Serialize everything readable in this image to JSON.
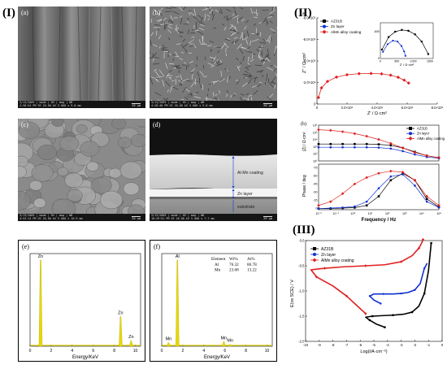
{
  "figure": {
    "roman_I": "(I)",
    "roman_II": "(II)",
    "roman_III": "(III)"
  },
  "sem": {
    "a": {
      "label": "(a)",
      "info": "3/13/2009 | mode | HV | mag | WD",
      "info2": "4:30:54 PM  SE  20.00 kV 5 000 x 9.8 mm",
      "scale": "20 μm"
    },
    "b": {
      "label": "(b)",
      "info": "3/13/2009 | mode | HV | mag | WD",
      "info2": "4:28:48 PM  SE  20.00 kV 5 000 x 9.8 mm",
      "scale": "20 μm"
    },
    "c": {
      "label": "(c)",
      "info": "3/13/2009 | mode | HV | mag | WD",
      "info2": "4:53:14 PM  SE  20.00 kV 5 000 x 10.9 mm",
      "scale": "20 μm"
    },
    "d": {
      "label": "(d)",
      "info": "3/13/2009 | mode | HV | mag | WD",
      "info2": "10:29:51 PM  SE  20.00 kV 5 000 x 7.7 mm",
      "scale": "20 μm",
      "annot_coating": "Al-Mn coating",
      "annot_zn": "Zn layer",
      "annot_sub": "substrate"
    }
  },
  "eds": {
    "e": {
      "label": "(e)",
      "xlabel": "Energy/KeV",
      "peaks": [
        {
          "label": "Zn",
          "energy": 1.0,
          "height": 0.93
        },
        {
          "label": "Zn",
          "energy": 8.6,
          "height": 0.32
        },
        {
          "label": "Zn",
          "energy": 9.6,
          "height": 0.06
        }
      ],
      "xticks": [
        "0",
        "2",
        "4",
        "6",
        "8",
        "10"
      ]
    },
    "f": {
      "label": "(f)",
      "xlabel": "Energy/KeV",
      "peaks": [
        {
          "label": "Mn",
          "energy": 0.65,
          "height": 0.04
        },
        {
          "label": "Al",
          "energy": 1.49,
          "height": 0.93
        },
        {
          "label": "Mn",
          "energy": 5.9,
          "height": 0.05
        },
        {
          "label": "Mn",
          "energy": 6.5,
          "height": 0.02
        }
      ],
      "xticks": [
        "0",
        "2",
        "4",
        "6",
        "8",
        "10"
      ],
      "table": {
        "headers": [
          "Element",
          "Wt%",
          "At%"
        ],
        "rows": [
          [
            "Al",
            "76.32",
            "86.78"
          ],
          [
            "Mn",
            "23.68",
            "13.22"
          ]
        ]
      }
    }
  },
  "chart_data": [
    {
      "type": "line",
      "label": "(a)",
      "xlabel": "Z' / Ω·cm²",
      "ylabel": "Z'' / Ω·cm²",
      "xlim": [
        0,
        800000
      ],
      "ylim": [
        0,
        -800000
      ],
      "xticks": [
        "0",
        "2.0×10⁵",
        "4.0×10⁵",
        "6.0×10⁵",
        "8.0×10⁵"
      ],
      "yticks": [
        "0",
        "-2.0×10⁵",
        "-4.0×10⁵",
        "-6.0×10⁵",
        "-8.0×10⁵"
      ],
      "legend": [
        "AZ31B",
        "Zn layer",
        "AlMn alloy coating"
      ],
      "series": [
        {
          "name": "AlMn alloy coating",
          "color": "#e02020",
          "x": [
            10000,
            30000,
            70000,
            130000,
            200000,
            280000,
            360000,
            430000,
            490000,
            540000,
            580000,
            610000
          ],
          "y": [
            -60000,
            -150000,
            -210000,
            -250000,
            -272000,
            -282000,
            -284000,
            -280000,
            -268000,
            -248000,
            -222000,
            -195000
          ]
        }
      ],
      "inset": {
        "xticks": [
          "0",
          "500",
          "1000",
          "1500"
        ],
        "yticks": [
          "0",
          "-600"
        ],
        "xlabel": "Z' / Ω·cm²",
        "series": [
          {
            "name": "AZ31B",
            "color": "#000000",
            "x": [
              50,
              250,
              450,
              650,
              850,
              1050,
              1250,
              1450
            ],
            "y": [
              -200,
              -480,
              -600,
              -640,
              -620,
              -540,
              -380,
              -100
            ]
          },
          {
            "name": "Zn layer",
            "color": "#1030d0",
            "x": [
              80,
              220,
              380,
              520,
              640,
              720,
              760
            ],
            "y": [
              -150,
              -320,
              -400,
              -380,
              -280,
              -160,
              -60
            ]
          }
        ]
      }
    },
    {
      "type": "line",
      "label": "(b)",
      "xlabel": "Frequency / Hz",
      "ylabel_top": "|Z| / Ω·cm²",
      "ylabel_bottom": "Phase / deg",
      "xticks": [
        "10⁻²",
        "10⁻¹",
        "10⁰",
        "10¹",
        "10²",
        "10³",
        "10⁴",
        "10⁵"
      ],
      "yticks_top": [
        "10⁶",
        "10⁵",
        "10⁴",
        "10³",
        "10²",
        "10¹"
      ],
      "yticks_bottom": [
        "-75",
        "-60",
        "-45",
        "-30",
        "-15",
        "0"
      ],
      "legend": [
        "AZ31B",
        "Zn layer",
        "AlMn alloy coating"
      ],
      "mod_series": [
        {
          "name": "AZ31B",
          "color": "#000000",
          "logz": [
            3.6,
            3.6,
            3.6,
            3.6,
            3.6,
            3.55,
            3.4,
            3.0,
            2.4,
            1.8,
            1.5
          ]
        },
        {
          "name": "Zn layer",
          "color": "#1030d0",
          "logz": [
            3.1,
            3.1,
            3.1,
            3.1,
            3.1,
            3.05,
            2.9,
            2.5,
            2.0,
            1.6,
            1.4
          ]
        },
        {
          "name": "AlMn alloy coating",
          "color": "#e02020",
          "logz": [
            5.8,
            5.7,
            5.5,
            5.2,
            4.8,
            4.3,
            3.7,
            3.0,
            2.3,
            1.8,
            1.5
          ]
        }
      ],
      "phase_series": [
        {
          "name": "AZ31B",
          "color": "#000000",
          "phase": [
            -2,
            -2,
            -3,
            -4,
            -8,
            -25,
            -55,
            -68,
            -55,
            -20,
            -5
          ]
        },
        {
          "name": "Zn layer",
          "color": "#1030d0",
          "phase": [
            -2,
            -3,
            -4,
            -6,
            -15,
            -40,
            -62,
            -66,
            -45,
            -15,
            -4
          ]
        },
        {
          "name": "AlMn alloy coating",
          "color": "#e02020",
          "phase": [
            -8,
            -15,
            -30,
            -48,
            -60,
            -68,
            -72,
            -70,
            -55,
            -25,
            -8
          ]
        }
      ]
    },
    {
      "type": "line",
      "label": "(III)",
      "xlabel": "Log(i/A·cm⁻²)",
      "ylabel": "E(vs SCE) / V",
      "xlim": [
        -10,
        0
      ],
      "ylim": [
        -2.0,
        0.0
      ],
      "xticks": [
        "-10",
        "-9",
        "-8",
        "-7",
        "-6",
        "-5",
        "-4",
        "-3",
        "-2",
        "-1",
        "0"
      ],
      "yticks": [
        "0.0",
        "-0.5",
        "-1.0",
        "-1.5",
        "-2.0"
      ],
      "legend": [
        "AZ31B",
        "Zn layer",
        "AlMn alloy coating"
      ],
      "series": [
        {
          "name": "AZ31B",
          "color": "#000000",
          "x": [
            -4.2,
            -4.8,
            -5.3,
            -5.6,
            -5.1,
            -4.4,
            -3.6,
            -2.8,
            -2.2,
            -1.7,
            -1.3,
            -1.0,
            -0.8
          ],
          "y": [
            -1.72,
            -1.66,
            -1.58,
            -1.52,
            -1.5,
            -1.49,
            -1.48,
            -1.46,
            -1.42,
            -1.3,
            -1.05,
            -0.6,
            -0.05
          ]
        },
        {
          "name": "Zn layer",
          "color": "#1030d0",
          "x": [
            -4.5,
            -5.0,
            -5.3,
            -5.0,
            -4.3,
            -3.6,
            -3.0,
            -2.5,
            -2.0,
            -1.6,
            -1.3,
            -1.1
          ],
          "y": [
            -1.25,
            -1.18,
            -1.1,
            -1.06,
            -1.06,
            -1.06,
            -1.05,
            -1.03,
            -0.98,
            -0.85,
            -0.55,
            -0.45
          ]
        },
        {
          "name": "AlMn alloy coating",
          "color": "#e02020",
          "x": [
            -5.6,
            -6.2,
            -7.0,
            -8.0,
            -9.2,
            -9.6,
            -8.6,
            -7.2,
            -5.6,
            -4.2,
            -3.0,
            -2.2,
            -1.7,
            -1.5,
            -1.4
          ],
          "y": [
            -1.45,
            -1.3,
            -1.1,
            -0.9,
            -0.72,
            -0.58,
            -0.55,
            -0.52,
            -0.5,
            -0.48,
            -0.42,
            -0.3,
            -0.15,
            -0.05,
            0.02
          ]
        }
      ]
    }
  ]
}
